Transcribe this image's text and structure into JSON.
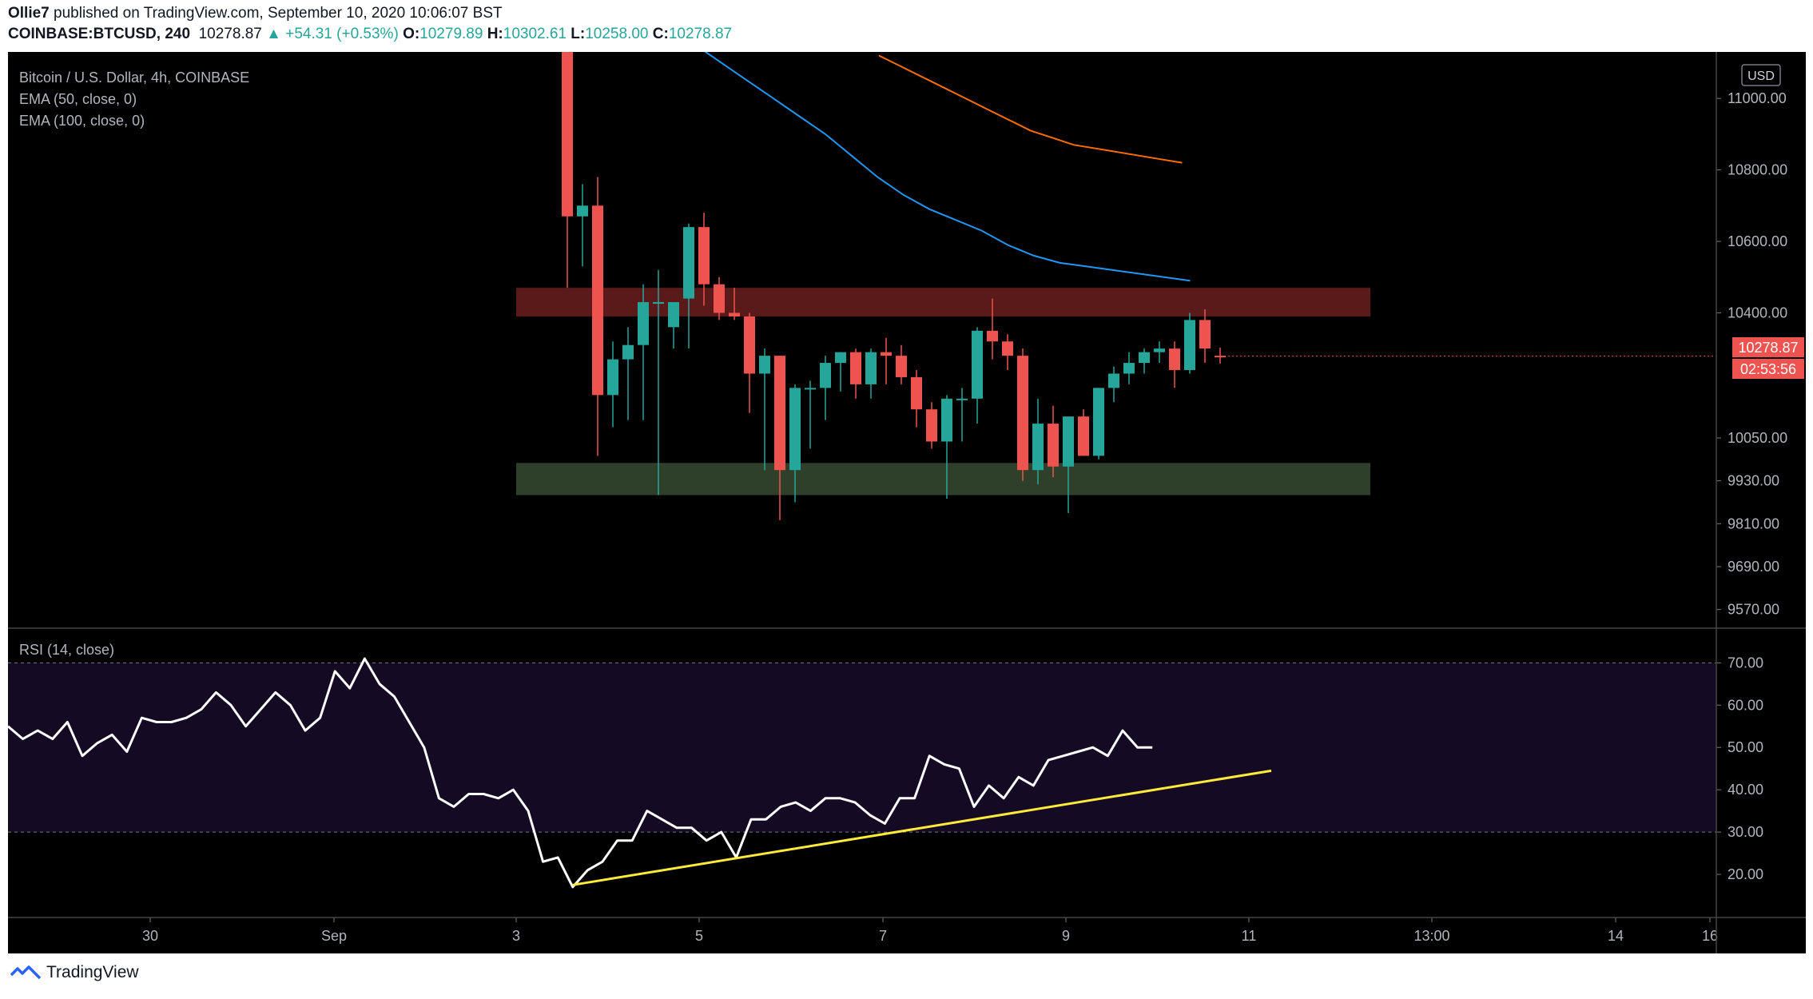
{
  "header": {
    "publisher": "Ollie7",
    "published_text": "published on TradingView.com, September 10, 2020 10:06:07 BST",
    "symbol": "COINBASE:BTCUSD, 240",
    "last": "10278.87",
    "change": "▲ +54.31 (+0.53%)",
    "o_label": "O:",
    "o_value": "10279.89",
    "h_label": "H:",
    "h_value": "10302.61",
    "l_label": "L:",
    "l_value": "10258.00",
    "c_label": "C:",
    "c_value": "10278.87"
  },
  "legend": {
    "series_title": "Bitcoin / U.S. Dollar, 4h, COINBASE",
    "ema50": "EMA (50, close, 0)",
    "ema100": "EMA (100, close, 0)",
    "rsi": "RSI (14, close)"
  },
  "price_axis": {
    "currency": "USD",
    "price_label": "10278.87",
    "countdown_label": "02:53:56"
  },
  "footer": {
    "brand": "TradingView"
  },
  "colors": {
    "background": "#000000",
    "up": "#26a69a",
    "down": "#ef5350",
    "ema50": "#2196f3",
    "ema100": "#ff6d00",
    "resistance_zone": "#5b1a1a",
    "support_zone": "#2e4029",
    "rsi_band": "#150a24",
    "rsi_line": "#ffffff",
    "trendline": "#ffeb3b",
    "axis_text": "#b2b5be",
    "grid_sep": "#444444"
  },
  "chart_data": {
    "type": "candlestick",
    "title": "Bitcoin / U.S. Dollar, 4h, COINBASE",
    "x_tick_labels": [
      "30",
      "Sep",
      "3",
      "5",
      "7",
      "9",
      "11",
      "13:00",
      "14",
      "16"
    ],
    "price_ticks": [
      11000,
      10800,
      10600,
      10400,
      10050,
      9930,
      9810,
      9690,
      9570
    ],
    "price_tick_labels": [
      "11000.00",
      "10800.00",
      "10600.00",
      "10400.00",
      "10050.00",
      "9930.00",
      "9810.00",
      "9690.00",
      "9570.00"
    ],
    "price_range": [
      9520,
      11130
    ],
    "candles": [
      {
        "o": 11200,
        "h": 11200,
        "l": 10470,
        "c": 10670
      },
      {
        "o": 10670,
        "h": 10760,
        "l": 10530,
        "c": 10700
      },
      {
        "o": 10700,
        "h": 10780,
        "l": 10000,
        "c": 10170
      },
      {
        "o": 10170,
        "h": 10320,
        "l": 10080,
        "c": 10270
      },
      {
        "o": 10270,
        "h": 10360,
        "l": 10100,
        "c": 10310
      },
      {
        "o": 10310,
        "h": 10480,
        "l": 10100,
        "c": 10430
      },
      {
        "o": 10430,
        "h": 10520,
        "l": 9890,
        "c": 10430
      },
      {
        "o": 10360,
        "h": 10430,
        "l": 10300,
        "c": 10430
      },
      {
        "o": 10440,
        "h": 10650,
        "l": 10300,
        "c": 10640
      },
      {
        "o": 10640,
        "h": 10680,
        "l": 10420,
        "c": 10480
      },
      {
        "o": 10480,
        "h": 10500,
        "l": 10380,
        "c": 10400
      },
      {
        "o": 10400,
        "h": 10470,
        "l": 10380,
        "c": 10390
      },
      {
        "o": 10390,
        "h": 10400,
        "l": 10120,
        "c": 10230
      },
      {
        "o": 10230,
        "h": 10300,
        "l": 9960,
        "c": 10280
      },
      {
        "o": 10280,
        "h": 10280,
        "l": 9820,
        "c": 9960
      },
      {
        "o": 9960,
        "h": 10200,
        "l": 9870,
        "c": 10190
      },
      {
        "o": 10190,
        "h": 10210,
        "l": 10020,
        "c": 10190
      },
      {
        "o": 10190,
        "h": 10280,
        "l": 10100,
        "c": 10260
      },
      {
        "o": 10260,
        "h": 10290,
        "l": 10180,
        "c": 10290
      },
      {
        "o": 10290,
        "h": 10300,
        "l": 10160,
        "c": 10200
      },
      {
        "o": 10200,
        "h": 10300,
        "l": 10160,
        "c": 10290
      },
      {
        "o": 10290,
        "h": 10330,
        "l": 10200,
        "c": 10280
      },
      {
        "o": 10280,
        "h": 10310,
        "l": 10200,
        "c": 10220
      },
      {
        "o": 10220,
        "h": 10240,
        "l": 10080,
        "c": 10130
      },
      {
        "o": 10130,
        "h": 10150,
        "l": 10020,
        "c": 10040
      },
      {
        "o": 10040,
        "h": 10170,
        "l": 9880,
        "c": 10160
      },
      {
        "o": 10160,
        "h": 10190,
        "l": 10040,
        "c": 10160
      },
      {
        "o": 10160,
        "h": 10360,
        "l": 10090,
        "c": 10350
      },
      {
        "o": 10350,
        "h": 10440,
        "l": 10270,
        "c": 10320
      },
      {
        "o": 10320,
        "h": 10340,
        "l": 10240,
        "c": 10280
      },
      {
        "o": 10280,
        "h": 10300,
        "l": 9930,
        "c": 9960
      },
      {
        "o": 9960,
        "h": 10160,
        "l": 9920,
        "c": 10090
      },
      {
        "o": 10090,
        "h": 10140,
        "l": 9940,
        "c": 9970
      },
      {
        "o": 9970,
        "h": 10110,
        "l": 9840,
        "c": 10110
      },
      {
        "o": 10110,
        "h": 10130,
        "l": 10000,
        "c": 10000
      },
      {
        "o": 10000,
        "h": 10190,
        "l": 9990,
        "c": 10190
      },
      {
        "o": 10190,
        "h": 10250,
        "l": 10150,
        "c": 10230
      },
      {
        "o": 10230,
        "h": 10290,
        "l": 10200,
        "c": 10260
      },
      {
        "o": 10260,
        "h": 10300,
        "l": 10230,
        "c": 10290
      },
      {
        "o": 10290,
        "h": 10320,
        "l": 10260,
        "c": 10300
      },
      {
        "o": 10300,
        "h": 10320,
        "l": 10190,
        "c": 10240
      },
      {
        "o": 10240,
        "h": 10400,
        "l": 10230,
        "c": 10380
      },
      {
        "o": 10380,
        "h": 10410,
        "l": 10260,
        "c": 10300
      },
      {
        "o": 10280,
        "h": 10302.61,
        "l": 10258,
        "c": 10278.87
      }
    ],
    "ema50": [
      11150,
      11100,
      11050,
      11000,
      10950,
      10900,
      10840,
      10780,
      10730,
      10690,
      10660,
      10630,
      10590,
      10560,
      10540,
      10530,
      10520,
      10510,
      10500,
      10490
    ],
    "ema100": [
      11120,
      11090,
      11060,
      11030,
      11000,
      10970,
      10940,
      10910,
      10890,
      10870,
      10860,
      10850,
      10840,
      10830,
      10820
    ],
    "resistance_zone": [
      10390,
      10470
    ],
    "support_zone": [
      9890,
      9980
    ],
    "rsi": {
      "range": [
        10,
        78
      ],
      "levels": [
        70,
        30
      ],
      "tick_labels": [
        "70.00",
        "60.00",
        "50.00",
        "40.00",
        "30.00",
        "20.00"
      ],
      "ticks": [
        70,
        60,
        50,
        40,
        30,
        20
      ],
      "values": [
        55,
        52,
        54,
        52,
        56,
        48,
        51,
        53,
        49,
        57,
        56,
        56,
        57,
        59,
        63,
        60,
        55,
        59,
        63,
        60,
        54,
        57,
        68,
        64,
        71,
        65,
        62,
        56,
        50,
        38,
        36,
        39,
        39,
        38,
        40,
        35,
        23,
        24,
        17,
        21,
        23,
        28,
        28,
        35,
        33,
        31,
        31,
        28,
        30,
        24,
        33,
        33,
        36,
        37,
        35,
        38,
        38,
        37,
        34,
        32,
        38,
        38,
        48,
        46,
        45,
        36,
        41,
        38,
        43,
        41,
        47,
        48,
        49,
        50,
        48,
        54,
        50,
        50
      ],
      "trendline": [
        [
          38,
          17.5
        ],
        [
          85,
          44.5
        ]
      ]
    }
  }
}
